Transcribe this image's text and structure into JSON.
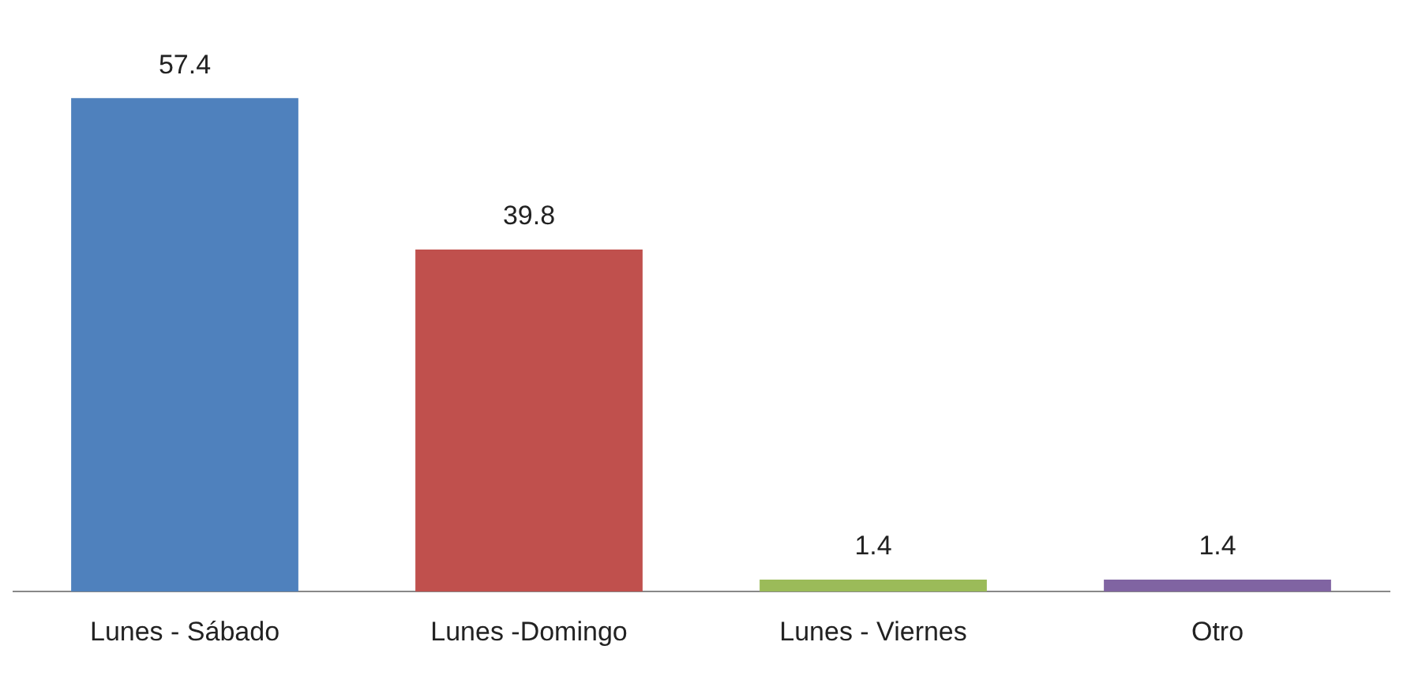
{
  "chart_data": {
    "type": "bar",
    "categories": [
      "Lunes - Sábado",
      "Lunes -Domingo",
      "Lunes - Viernes",
      "Otro"
    ],
    "values": [
      57.4,
      39.8,
      1.4,
      1.4
    ],
    "colors": [
      "#4f81bd",
      "#c0504d",
      "#9bbb59",
      "#8064a2"
    ],
    "data_labels": true,
    "grid": false,
    "legend": false
  }
}
